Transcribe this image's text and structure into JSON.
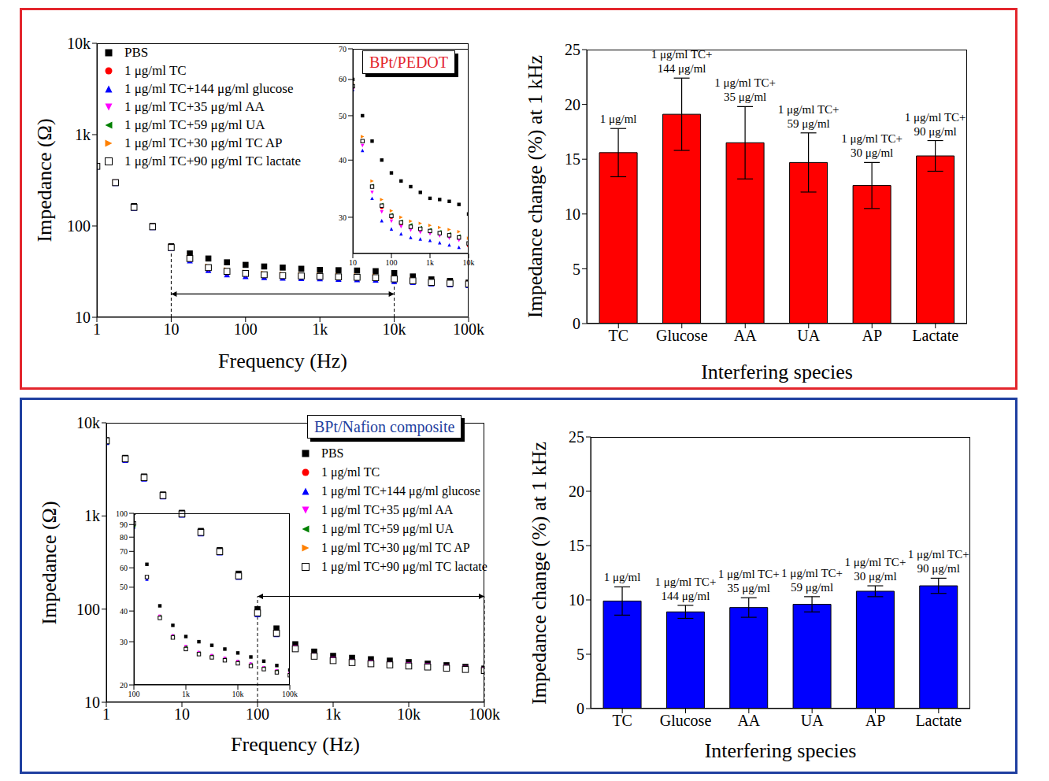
{
  "frame_colors": [
    "#e3262d",
    "#1f3fa0"
  ],
  "chart_data": [
    {
      "type": "scatter",
      "title": "BPt/PEDOT",
      "x_label": "Frequency (Hz)",
      "y_label": "Impedance (Ω)",
      "log": true,
      "legend": "upper left",
      "x": [
        1,
        1.78,
        3.16,
        5.62,
        10,
        17.8,
        31.6,
        56.2,
        100,
        178,
        316,
        562,
        1000,
        1780,
        3160,
        5620,
        10000,
        17800,
        31600,
        56200,
        100000
      ],
      "xlim": [
        1,
        100000
      ],
      "xticks": [
        1,
        10,
        100,
        {
          "value": 1000,
          "label": "1k"
        },
        {
          "value": 10000,
          "label": "10k"
        },
        {
          "value": 100000,
          "label": "100k"
        }
      ],
      "ylim": [
        10,
        10000
      ],
      "yticks": [
        10,
        100,
        {
          "value": 1000,
          "label": "1k"
        },
        {
          "value": 10000,
          "label": "10k"
        }
      ],
      "series": [
        {
          "name": "PBS",
          "color": "#000000",
          "marker": "square",
          "values": [
            450,
            300,
            165,
            100,
            60,
            50,
            44,
            40,
            37.5,
            36,
            35,
            34,
            33,
            32.8,
            32.5,
            32,
            30.5,
            28,
            26,
            25,
            24
          ]
        },
        {
          "name": "1 μg/ml TC",
          "color": "#ff0000",
          "marker": "circle",
          "values": [
            450,
            298,
            160,
            98,
            58,
            44,
            35,
            31.5,
            30,
            29,
            28.5,
            28.2,
            27.9,
            27.6,
            27.3,
            27,
            26,
            25,
            24,
            23.5,
            23
          ]
        },
        {
          "name": "1 μg/ml TC+144 μg/ml glucose",
          "color": "#0000ff",
          "marker": "triangle-up",
          "values": [
            448,
            296,
            158,
            97,
            57,
            42,
            33,
            29.5,
            28.3,
            27.6,
            27.1,
            26.9,
            26.7,
            26.4,
            26.1,
            25.8,
            25,
            24.3,
            23.5,
            23,
            22.5
          ]
        },
        {
          "name": "1 μg/ml TC+35 μg/ml AA",
          "color": "#ff00ff",
          "marker": "triangle-down",
          "values": [
            449,
            297,
            159,
            97,
            57,
            43,
            34,
            30.8,
            29.4,
            28.6,
            28.1,
            27.8,
            27.6,
            27.3,
            27,
            26.7,
            26,
            24.8,
            23.8,
            23.3,
            22.8
          ]
        },
        {
          "name": "1 μg/ml TC+59 μg/ml UA",
          "color": "#008000",
          "marker": "triangle-left",
          "values": [
            450,
            298,
            160,
            98,
            58,
            44,
            35.2,
            32,
            30.4,
            29.4,
            28.9,
            28.5,
            28.2,
            27.9,
            27.6,
            27.3,
            26.4,
            25.2,
            24.2,
            23.7,
            23.2
          ]
        },
        {
          "name": "1 μg/ml TC+30 μg/ml TC AP",
          "color": "#ff8000",
          "marker": "triangle-right",
          "values": [
            451,
            299,
            161,
            99,
            59,
            45,
            36,
            32.8,
            31,
            30,
            29.4,
            29.1,
            28.8,
            28.5,
            28.2,
            27.9,
            27,
            25.6,
            24.5,
            24,
            23.5
          ]
        },
        {
          "name": "1 μg/ml TC+90 μg/ml TC lactate",
          "color": "#000000",
          "marker": "square-open",
          "values": [
            450,
            298,
            160,
            98,
            58,
            44,
            35,
            31.8,
            30.2,
            29.2,
            28.6,
            28.3,
            28,
            27.7,
            27.4,
            27.1,
            26.3,
            25.1,
            24.1,
            23.6,
            23.1
          ]
        }
      ],
      "range_marker": {
        "x": [
          10,
          10000
        ],
        "y": 18
      },
      "inset": {
        "log": true,
        "xlim": [
          10,
          10000
        ],
        "xticks": [
          10,
          100,
          {
            "value": 1000,
            "label": "1k"
          },
          {
            "value": 10000,
            "label": "10k"
          }
        ],
        "ylim": [
          25,
          70
        ],
        "yticks": [
          30,
          40,
          50,
          60,
          70
        ]
      }
    },
    {
      "type": "bar",
      "x_label": "Interfering species",
      "y_label": "Impedance change (%) at 1 kHz",
      "color": "#ff0000",
      "categories": [
        "TC",
        "Glucose",
        "AA",
        "UA",
        "AP",
        "Lactate"
      ],
      "values": [
        15.6,
        19.1,
        16.5,
        14.7,
        12.6,
        15.3
      ],
      "errors": [
        2.2,
        3.3,
        3.3,
        2.7,
        2.1,
        1.4
      ],
      "annotations": [
        [
          "1 μg/ml"
        ],
        [
          "1 μg/ml TC+",
          "144 μg/ml"
        ],
        [
          "1 μg/ml TC+",
          "35 μg/ml"
        ],
        [
          "1 μg/ml TC+",
          "59 μg/ml"
        ],
        [
          "1 μg/ml TC+",
          "30 μg/ml"
        ],
        [
          "1 μg/ml TC+",
          "90 μg/ml"
        ]
      ],
      "ylim": [
        0,
        25
      ],
      "yticks": [
        0,
        5,
        10,
        15,
        20,
        25
      ]
    },
    {
      "type": "scatter",
      "title": "BPt/Nafion composite",
      "x_label": "Frequency (Hz)",
      "y_label": "Impedance (Ω)",
      "log": true,
      "legend": "upper right",
      "x": [
        1,
        1.78,
        3.16,
        5.62,
        10,
        17.8,
        31.6,
        56.2,
        100,
        178,
        316,
        562,
        1000,
        1780,
        3160,
        5620,
        10000,
        17800,
        31600,
        56200,
        100000
      ],
      "xlim": [
        1,
        100000
      ],
      "xticks": [
        1,
        10,
        100,
        {
          "value": 1000,
          "label": "1k"
        },
        {
          "value": 10000,
          "label": "10k"
        },
        {
          "value": 100000,
          "label": "100k"
        }
      ],
      "ylim": [
        10,
        10000
      ],
      "yticks": [
        10,
        100,
        {
          "value": 1000,
          "label": "1k"
        },
        {
          "value": 10000,
          "label": "10k"
        }
      ],
      "series": [
        {
          "name": "PBS",
          "color": "#000000",
          "marker": "square",
          "values": [
            6500,
            4200,
            2650,
            1700,
            1080,
            690,
            430,
            240,
            100,
            62,
            42,
            35,
            31.5,
            30,
            29,
            28,
            27,
            26,
            25,
            24,
            23
          ]
        },
        {
          "name": "1 μg/ml TC",
          "color": "#ff0000",
          "marker": "circle",
          "values": [
            6300,
            4050,
            2550,
            1640,
            1040,
            660,
            410,
            225,
            90,
            55,
            38,
            31.5,
            28.4,
            27,
            26.2,
            25.5,
            24.8,
            24.2,
            23.5,
            22.8,
            22.2
          ]
        },
        {
          "name": "1 μg/ml TC+144 μg/ml glucose",
          "color": "#0000ff",
          "marker": "triangle-up",
          "values": [
            6200,
            4000,
            2520,
            1620,
            1030,
            650,
            405,
            222,
            88,
            54,
            38,
            31.8,
            28.7,
            27.2,
            26.4,
            25.7,
            25,
            24.4,
            23.6,
            22.9,
            22.3
          ]
        },
        {
          "name": "1 μg/ml TC+35 μg/ml AA",
          "color": "#ff00ff",
          "marker": "triangle-down",
          "values": [
            6250,
            4020,
            2530,
            1630,
            1035,
            655,
            407,
            223,
            89,
            54.5,
            38,
            31.7,
            28.6,
            27.1,
            26.3,
            25.6,
            24.9,
            24.3,
            23.5,
            22.8,
            22.2
          ]
        },
        {
          "name": "1 μg/ml TC+59 μg/ml UA",
          "color": "#008000",
          "marker": "triangle-left",
          "values": [
            6280,
            4030,
            2540,
            1635,
            1038,
            658,
            408,
            224,
            89,
            55,
            38,
            31.6,
            28.5,
            27,
            26.2,
            25.5,
            24.8,
            24.2,
            23.5,
            22.8,
            22.2
          ]
        },
        {
          "name": "1 μg/ml TC+30 μg/ml TC AP",
          "color": "#ff8000",
          "marker": "triangle-right",
          "values": [
            6350,
            4080,
            2570,
            1650,
            1045,
            662,
            412,
            226,
            90,
            55,
            37.6,
            31.3,
            28.1,
            26.8,
            26,
            25.3,
            24.6,
            24,
            23.3,
            22.6,
            22
          ]
        },
        {
          "name": "1 μg/ml TC+90 μg/ml TC lactate",
          "color": "#000000",
          "marker": "square-open",
          "values": [
            6400,
            4100,
            2580,
            1655,
            1050,
            665,
            414,
            227,
            91,
            55,
            37.5,
            31.2,
            28,
            26.7,
            25.9,
            25.2,
            24.5,
            23.9,
            23.2,
            22.5,
            21.9
          ]
        }
      ],
      "range_marker": {
        "x": [
          100,
          100000
        ],
        "y": 137
      },
      "inset": {
        "log": true,
        "xlim": [
          100,
          100000
        ],
        "xticks": [
          100,
          {
            "value": 1000,
            "label": "1k"
          },
          {
            "value": 10000,
            "label": "10k"
          },
          {
            "value": 100000,
            "label": "100k"
          }
        ],
        "ylim": [
          20,
          100
        ],
        "yticks": [
          20,
          30,
          40,
          50,
          60,
          70,
          80,
          90,
          100
        ]
      }
    },
    {
      "type": "bar",
      "x_label": "Interfering species",
      "y_label": "Impedance change (%) at 1 kHz",
      "color": "#0000ff",
      "categories": [
        "TC",
        "Glucose",
        "AA",
        "UA",
        "AP",
        "Lactate"
      ],
      "values": [
        9.9,
        8.9,
        9.3,
        9.6,
        10.8,
        11.3
      ],
      "errors": [
        1.3,
        0.6,
        0.9,
        0.7,
        0.5,
        0.7
      ],
      "annotations": [
        [
          "1 μg/ml"
        ],
        [
          "1 μg/ml TC+",
          "144 μg/ml"
        ],
        [
          "1 μg/ml TC+",
          "35 μg/ml"
        ],
        [
          "1 μg/ml TC+",
          "59 μg/ml"
        ],
        [
          "1 μg/ml TC+",
          "30 μg/ml"
        ],
        [
          "1 μg/ml TC+",
          "90 μg/ml"
        ]
      ],
      "ylim": [
        0,
        25
      ],
      "yticks": [
        0,
        5,
        10,
        15,
        20,
        25
      ]
    }
  ]
}
